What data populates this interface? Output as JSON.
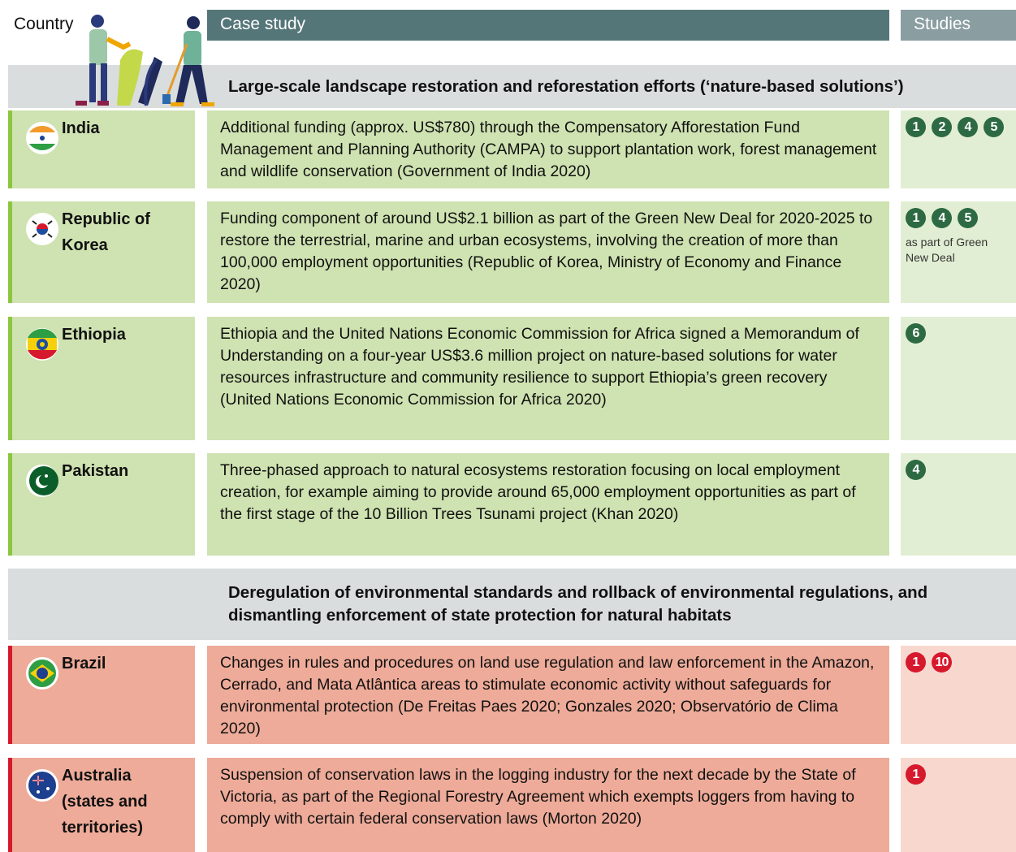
{
  "header": {
    "country": "Country",
    "case_study": "Case study",
    "studies": "Studies"
  },
  "sections": [
    {
      "title": "Large-scale landscape restoration and reforestation efforts (‘nature-based solutions’)",
      "rows": [
        {
          "country": "India",
          "case": "Additional funding (approx. US$780) through the Compensatory Afforestation Fund Management and Planning Authority (CAMPA) to support plantation work, forest management and wildlife conservation (Government of India 2020)",
          "studies": [
            1,
            2,
            4,
            5
          ]
        },
        {
          "country": "Republic of Korea",
          "case": "Funding component of around US$2.1 billion as part of the Green New Deal for 2020-2025 to restore the terrestrial, marine and urban ecosystems, involving the creation of more than 100,000 employment opportunities (Republic of Korea, Ministry of Economy and Finance 2020)",
          "studies": [
            1,
            4,
            5
          ],
          "note": "as part of Green New Deal"
        },
        {
          "country": "Ethiopia",
          "case": "Ethiopia and the United Nations Economic Commission for Africa signed a Memorandum of Understanding on a four-year US$3.6 million project on nature-based solutions for water resources infrastructure and community resilience to support Ethiopia’s green recovery (United Nations Economic Commission for Africa 2020)",
          "studies": [
            6
          ]
        },
        {
          "country": "Pakistan",
          "case": "Three-phased approach to natural ecosystems restoration focusing on local employment creation, for example aiming to provide around 65,000 employment opportunities as part of the first stage of the 10 Billion Trees Tsunami project (Khan 2020)",
          "studies": [
            4
          ]
        }
      ]
    },
    {
      "title": "Deregulation of environmental standards and rollback of environmental regulations, and dismantling enforcement of state protection for natural habitats",
      "rows": [
        {
          "country": "Brazil",
          "case": "Changes in rules and procedures on land use regulation and law enforcement in the Amazon, Cerrado, and Mata Atlântica areas to stimulate economic activity without safeguards for environmental protection (De Freitas Paes 2020; Gonzales 2020; Observatório de Clima 2020)",
          "studies": [
            1,
            10
          ]
        },
        {
          "country": "Australia (states and territories)",
          "case": "Suspension of conservation laws in the logging industry for the next decade by the State of Victoria, as part of the Regional Forestry Agreement which exempts loggers from having to comply with certain federal conservation laws (Morton 2020)",
          "studies": [
            1
          ]
        }
      ]
    }
  ]
}
